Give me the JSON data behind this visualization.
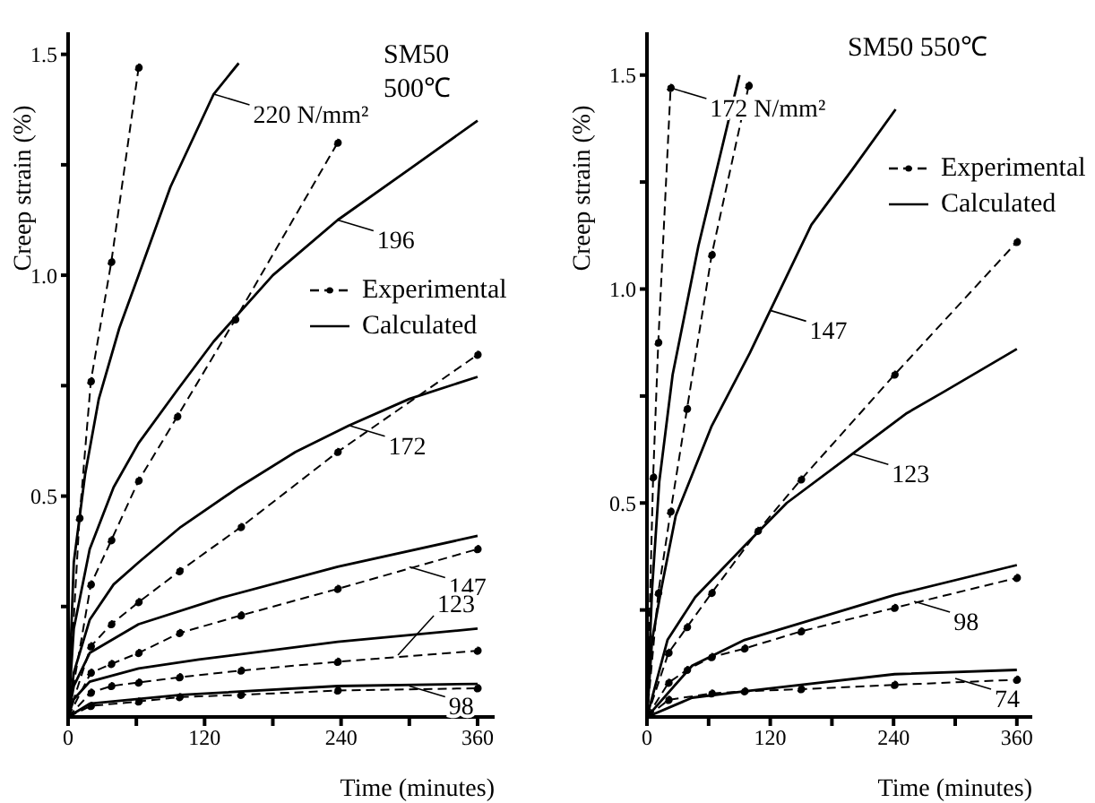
{
  "chart_data": [
    {
      "type": "line",
      "title": "SM50 500℃",
      "xlabel": "Time (minutes)",
      "ylabel": "Creep strain (%)",
      "xlim": [
        0,
        375
      ],
      "ylim": [
        0,
        1.55
      ],
      "xticks": [
        0,
        {
          "value": 60,
          "label": null
        },
        120,
        {
          "value": 180,
          "label": null
        },
        240,
        {
          "value": 300,
          "label": null
        },
        360
      ],
      "yticks": [
        {
          "value": 0.25,
          "label": null
        },
        {
          "value": 0.5,
          "label": "0.5"
        },
        {
          "value": 0.75,
          "label": null
        },
        {
          "value": 1,
          "label": "1.0"
        },
        {
          "value": 1.25,
          "label": null
        },
        {
          "value": 1.5,
          "label": "1.5"
        }
      ],
      "legend": "right",
      "grid": false,
      "series": [
        {
          "name": "Experimental",
          "color": "#000000",
          "line_style": "dashed",
          "marker": "circle",
          "x": [
            0,
            10,
            20,
            38,
            62
          ],
          "values": [
            0,
            0.45,
            0.76,
            1.03,
            1.47
          ]
        },
        {
          "name": "Calculated",
          "color": "#000000",
          "line_style": "solid",
          "marker": "none",
          "x": [
            0,
            5,
            15,
            27,
            45,
            62,
            90,
            128,
            150
          ],
          "values": [
            0,
            0.35,
            0.55,
            0.72,
            0.88,
            1.0,
            1.2,
            1.41,
            1.48
          ]
        },
        {
          "color": "#000000",
          "line_style": "dashed",
          "marker": "circle",
          "x": [
            0,
            20,
            38,
            62,
            96,
            147,
            237
          ],
          "values": [
            0,
            0.3,
            0.4,
            0.535,
            0.68,
            0.9,
            1.3
          ]
        },
        {
          "color": "#000000",
          "line_style": "solid",
          "marker": "none",
          "x": [
            0,
            5,
            19,
            40,
            62,
            96,
            128,
            180,
            237,
            300,
            360
          ],
          "values": [
            0,
            0.2,
            0.38,
            0.52,
            0.62,
            0.74,
            0.85,
            1.0,
            1.125,
            1.24,
            1.35
          ]
        },
        {
          "color": "#000000",
          "line_style": "dashed",
          "marker": "circle",
          "x": [
            0,
            20,
            38,
            62,
            98,
            152,
            237,
            360
          ],
          "values": [
            0,
            0.16,
            0.21,
            0.26,
            0.33,
            0.43,
            0.6,
            0.82
          ]
        },
        {
          "color": "#000000",
          "line_style": "solid",
          "marker": "none",
          "x": [
            0,
            5,
            19,
            40,
            62,
            99,
            150,
            200,
            247,
            300,
            360
          ],
          "values": [
            0,
            0.1,
            0.22,
            0.3,
            0.35,
            0.43,
            0.52,
            0.6,
            0.66,
            0.72,
            0.77
          ]
        },
        {
          "color": "#000000",
          "line_style": "dashed",
          "marker": "circle",
          "x": [
            0,
            20,
            38,
            62,
            98,
            152,
            237,
            360
          ],
          "values": [
            0,
            0.1,
            0.12,
            0.145,
            0.19,
            0.23,
            0.29,
            0.38
          ]
        },
        {
          "color": "#000000",
          "line_style": "solid",
          "marker": "none",
          "x": [
            0,
            5,
            19,
            62,
            135,
            237,
            360
          ],
          "values": [
            0,
            0.07,
            0.145,
            0.21,
            0.27,
            0.34,
            0.41
          ]
        },
        {
          "color": "#000000",
          "line_style": "dashed",
          "marker": "circle",
          "x": [
            0,
            20,
            38,
            62,
            98,
            152,
            237,
            360
          ],
          "values": [
            0,
            0.055,
            0.07,
            0.078,
            0.09,
            0.105,
            0.125,
            0.15
          ]
        },
        {
          "color": "#000000",
          "line_style": "solid",
          "marker": "none",
          "x": [
            0,
            5,
            19,
            62,
            115,
            237,
            360
          ],
          "values": [
            0,
            0.04,
            0.08,
            0.11,
            0.13,
            0.17,
            0.2
          ]
        },
        {
          "color": "#000000",
          "line_style": "dashed",
          "marker": "circle",
          "x": [
            0,
            20,
            62,
            98,
            152,
            237,
            360
          ],
          "values": [
            0,
            0.025,
            0.035,
            0.045,
            0.05,
            0.06,
            0.065
          ]
        },
        {
          "color": "#000000",
          "line_style": "solid",
          "marker": "none",
          "x": [
            0,
            19,
            99,
            237,
            360
          ],
          "values": [
            0,
            0.03,
            0.05,
            0.07,
            0.075
          ]
        }
      ],
      "annotations": [
        {
          "text": "220 N/mm²",
          "x": 128,
          "y": 1.41
        },
        {
          "text": "196",
          "x": 237,
          "y": 1.125
        },
        {
          "text": "172",
          "x": 247,
          "y": 0.66
        },
        {
          "text": "147",
          "x": 300,
          "y": 0.34
        },
        {
          "text": "123",
          "x": 290,
          "y": 0.14
        },
        {
          "text": "98",
          "x": 300,
          "y": 0.07
        }
      ]
    },
    {
      "type": "line",
      "title": "SM50  550℃",
      "xlabel": "Time (minutes)",
      "ylabel": "Creep strain (%)",
      "xlim": [
        0,
        375
      ],
      "ylim": [
        0,
        1.6
      ],
      "xticks": [
        0,
        {
          "value": 60,
          "label": null
        },
        120,
        {
          "value": 180,
          "label": null
        },
        240,
        {
          "value": 300,
          "label": null
        },
        360
      ],
      "yticks": [
        {
          "value": 0.25,
          "label": null
        },
        {
          "value": 0.5,
          "label": "0.5"
        },
        {
          "value": 0.75,
          "label": null
        },
        {
          "value": 1,
          "label": "1.0"
        },
        {
          "value": 1.25,
          "label": null
        },
        {
          "value": 1.5,
          "label": "1.5"
        }
      ],
      "legend": "top right",
      "grid": false,
      "series": [
        {
          "name": "Experimental",
          "color": "#000000",
          "line_style": "dashed",
          "marker": "circle",
          "x": [
            0,
            6,
            11,
            23
          ],
          "values": [
            0,
            0.56,
            0.875,
            1.47
          ]
        },
        {
          "name": "Calculated",
          "color": "#000000",
          "line_style": "solid",
          "marker": "none",
          "x": [
            0,
            5,
            12,
            25,
            50,
            70,
            90
          ],
          "values": [
            0,
            0.3,
            0.55,
            0.8,
            1.1,
            1.3,
            1.5
          ]
        },
        {
          "color": "#000000",
          "line_style": "dashed",
          "marker": "circle",
          "x": [
            0,
            11,
            23,
            39,
            63,
            99
          ],
          "values": [
            0,
            0.29,
            0.48,
            0.72,
            1.08,
            1.475
          ]
        },
        {
          "color": "#000000",
          "line_style": "solid",
          "marker": "none",
          "x": [
            0,
            5,
            14,
            28,
            63,
            100,
            160,
            200,
            242
          ],
          "values": [
            0,
            0.18,
            0.3,
            0.47,
            0.68,
            0.85,
            1.15,
            1.28,
            1.42
          ]
        },
        {
          "color": "#000000",
          "line_style": "dashed",
          "marker": "circle",
          "x": [
            0,
            21,
            39,
            63,
            108,
            150,
            241,
            360
          ],
          "values": [
            0,
            0.15,
            0.21,
            0.29,
            0.435,
            0.555,
            0.8,
            1.11
          ]
        },
        {
          "color": "#000000",
          "line_style": "solid",
          "marker": "none",
          "x": [
            0,
            20,
            47,
            95,
            136,
            253,
            289,
            360
          ],
          "values": [
            0,
            0.18,
            0.28,
            0.4,
            0.5,
            0.71,
            0.76,
            0.86
          ]
        },
        {
          "color": "#000000",
          "line_style": "dashed",
          "marker": "circle",
          "x": [
            0,
            21,
            39,
            63,
            95,
            150,
            241,
            360
          ],
          "values": [
            0,
            0.08,
            0.11,
            0.14,
            0.16,
            0.2,
            0.255,
            0.325
          ]
        },
        {
          "color": "#000000",
          "line_style": "solid",
          "marker": "none",
          "x": [
            0,
            44,
            95,
            241,
            360
          ],
          "values": [
            0,
            0.12,
            0.18,
            0.285,
            0.355
          ]
        },
        {
          "color": "#000000",
          "line_style": "dashed",
          "marker": "circle",
          "x": [
            0,
            21,
            63,
            95,
            150,
            241,
            360
          ],
          "values": [
            0,
            0.04,
            0.055,
            0.06,
            0.065,
            0.075,
            0.087
          ]
        },
        {
          "color": "#000000",
          "line_style": "solid",
          "marker": "none",
          "x": [
            0,
            44,
            95,
            241,
            360
          ],
          "values": [
            0,
            0.045,
            0.06,
            0.1,
            0.11
          ]
        }
      ],
      "annotations": [
        {
          "text": "172 N/mm²",
          "x": 23,
          "y": 1.47
        },
        {
          "text": "147",
          "x": 120,
          "y": 0.95
        },
        {
          "text": "123",
          "x": 200,
          "y": 0.615
        },
        {
          "text": "98",
          "x": 260,
          "y": 0.27
        },
        {
          "text": "74",
          "x": 300,
          "y": 0.09
        }
      ]
    }
  ]
}
